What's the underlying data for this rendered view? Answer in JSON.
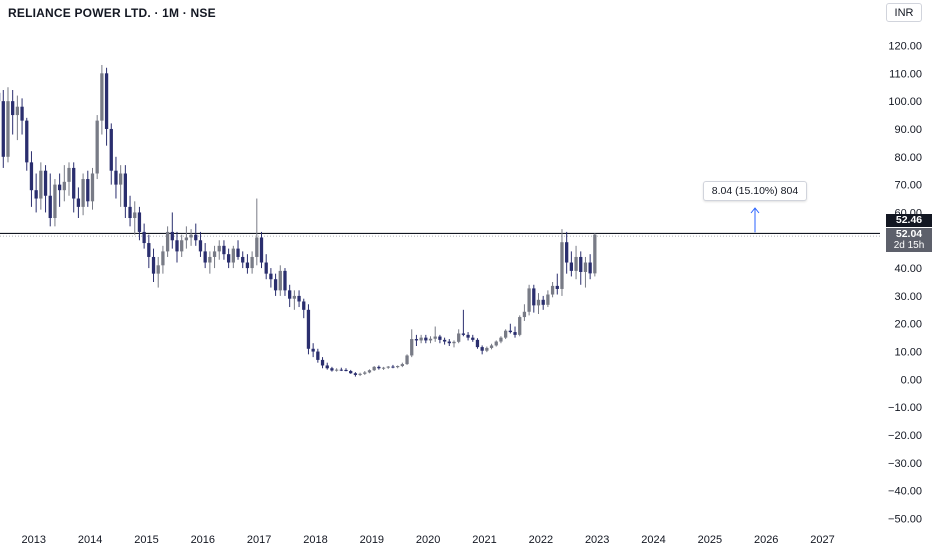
{
  "header": {
    "title": "RELIANCE POWER LTD. · 1M · NSE",
    "currency": "INR"
  },
  "measure_label": "8.04 (15.10%) 804",
  "price_tags": {
    "resistance": "52.46",
    "current": "52.04",
    "countdown": "2d 15h"
  },
  "colors": {
    "up": "#787b86",
    "down": "#2a2e6e",
    "resistance_line": "#131722",
    "axis_text": "#131722"
  },
  "chart_data": {
    "type": "candlestick",
    "title": "RELIANCE POWER LTD. · 1M · NSE",
    "y_ticks": [
      "120.00",
      "110.00",
      "100.00",
      "90.00",
      "80.00",
      "70.00",
      "60.00",
      "50.00",
      "40.00",
      "30.00",
      "20.00",
      "10.00",
      "0.00",
      "−10.00",
      "−20.00",
      "−30.00",
      "−40.00",
      "−50.00"
    ],
    "y_tick_values": [
      120,
      110,
      100,
      90,
      80,
      70,
      60,
      50,
      40,
      30,
      20,
      10,
      0,
      -10,
      -20,
      -30,
      -40,
      -50
    ],
    "ylim": [
      -52,
      124
    ],
    "x_ticks": [
      "2013",
      "2014",
      "2015",
      "2016",
      "2017",
      "2018",
      "2019",
      "2020",
      "2021",
      "2022",
      "2023",
      "2024",
      "2025",
      "2026",
      "2027"
    ],
    "x_tick_years": [
      2013,
      2014,
      2015,
      2016,
      2017,
      2018,
      2019,
      2020,
      2021,
      2022,
      2023,
      2024,
      2025,
      2026,
      2027
    ],
    "xlim": [
      2012.4,
      2028.02
    ],
    "resistance_level": 52.46,
    "current_price": 52.04,
    "change_annotation": "8.04 (15.10%) 804",
    "start": "2012-05",
    "candles": [
      [
        103,
        112,
        95,
        100
      ],
      [
        100,
        104,
        76,
        80
      ],
      [
        80,
        105,
        78,
        100
      ],
      [
        100,
        104,
        88,
        95
      ],
      [
        95,
        102,
        86,
        98
      ],
      [
        98,
        101,
        88,
        93
      ],
      [
        93,
        94,
        75,
        78
      ],
      [
        78,
        82,
        62,
        68
      ],
      [
        68,
        74,
        60,
        65
      ],
      [
        65,
        78,
        61,
        75
      ],
      [
        75,
        77,
        60,
        66
      ],
      [
        66,
        74,
        55,
        58
      ],
      [
        58,
        72,
        55,
        70
      ],
      [
        70,
        74,
        62,
        68
      ],
      [
        68,
        77,
        64,
        71
      ],
      [
        71,
        78,
        66,
        76
      ],
      [
        76,
        78,
        60,
        65
      ],
      [
        65,
        69,
        58,
        62
      ],
      [
        62,
        74,
        59,
        72
      ],
      [
        72,
        75,
        62,
        64
      ],
      [
        64,
        76,
        61,
        74
      ],
      [
        74,
        95,
        72,
        93
      ],
      [
        93,
        113,
        88,
        110
      ],
      [
        110,
        112,
        84,
        90
      ],
      [
        90,
        92,
        70,
        75
      ],
      [
        75,
        80,
        65,
        70
      ],
      [
        70,
        77,
        62,
        74
      ],
      [
        74,
        77,
        58,
        62
      ],
      [
        62,
        66,
        55,
        58
      ],
      [
        58,
        64,
        52,
        60
      ],
      [
        60,
        62,
        50,
        53
      ],
      [
        53,
        56,
        47,
        49
      ],
      [
        49,
        52,
        40,
        44
      ],
      [
        44,
        47,
        35,
        38
      ],
      [
        38,
        44,
        33,
        41
      ],
      [
        41,
        48,
        38,
        46
      ],
      [
        46,
        55,
        44,
        53
      ],
      [
        53,
        60,
        47,
        50
      ],
      [
        50,
        53,
        42,
        46
      ],
      [
        46,
        52,
        44,
        50
      ],
      [
        50,
        55,
        47,
        51
      ],
      [
        51,
        54,
        48,
        52
      ],
      [
        52,
        56,
        48,
        50
      ],
      [
        50,
        53,
        44,
        46
      ],
      [
        46,
        49,
        40,
        42
      ],
      [
        42,
        46,
        38,
        44
      ],
      [
        44,
        48,
        40,
        46
      ],
      [
        46,
        50,
        43,
        48
      ],
      [
        48,
        50,
        43,
        45
      ],
      [
        45,
        47,
        40,
        42
      ],
      [
        42,
        48,
        40,
        47
      ],
      [
        47,
        50,
        43,
        44
      ],
      [
        44,
        46,
        40,
        42
      ],
      [
        42,
        45,
        38,
        40
      ],
      [
        40,
        46,
        38,
        44
      ],
      [
        44,
        65,
        41,
        51
      ],
      [
        51,
        53,
        40,
        42
      ],
      [
        42,
        45,
        36,
        38
      ],
      [
        38,
        40,
        33,
        36
      ],
      [
        36,
        38,
        30,
        32
      ],
      [
        32,
        41,
        30,
        39
      ],
      [
        39,
        40,
        30,
        32
      ],
      [
        32,
        34,
        26,
        29
      ],
      [
        29,
        32,
        25,
        30
      ],
      [
        30,
        32,
        26,
        28
      ],
      [
        28,
        29,
        22,
        25
      ],
      [
        25,
        27,
        9,
        11
      ],
      [
        11,
        13,
        8,
        10
      ],
      [
        10,
        11,
        6,
        7
      ],
      [
        7,
        8,
        4,
        5
      ],
      [
        5,
        6,
        3.5,
        4
      ],
      [
        4,
        4.5,
        2.8,
        3.2
      ],
      [
        3.2,
        4,
        2.8,
        3.5
      ],
      [
        3.5,
        4.2,
        3,
        3.4
      ],
      [
        3.4,
        4,
        2.9,
        3
      ],
      [
        3,
        3.4,
        2,
        2.2
      ],
      [
        2.2,
        2.6,
        1,
        1.6
      ],
      [
        1.6,
        2.4,
        1.2,
        2
      ],
      [
        2,
        3,
        1.6,
        2.5
      ],
      [
        2.5,
        3.6,
        2.2,
        3.3
      ],
      [
        3.3,
        4.8,
        3,
        4.5
      ],
      [
        4.5,
        5,
        3.5,
        4
      ],
      [
        4,
        4.5,
        3.4,
        4.2
      ],
      [
        4.2,
        4.8,
        3.8,
        4.6
      ],
      [
        4.6,
        5.2,
        4,
        4.4
      ],
      [
        4.4,
        5,
        4,
        4.8
      ],
      [
        4.8,
        6,
        4.4,
        5.5
      ],
      [
        5.5,
        9,
        5.2,
        8.6
      ],
      [
        8.6,
        18,
        8,
        14.5
      ],
      [
        14.5,
        16,
        12,
        14
      ],
      [
        14,
        16,
        13,
        15
      ],
      [
        15,
        16,
        13,
        14
      ],
      [
        14,
        15.5,
        13,
        14.6
      ],
      [
        14.6,
        19,
        13.5,
        15.4
      ],
      [
        15.4,
        16,
        13,
        14.2
      ],
      [
        14.2,
        15,
        12.5,
        13.6
      ],
      [
        13.6,
        14.5,
        12,
        13
      ],
      [
        13,
        14,
        11.5,
        13.5
      ],
      [
        13.5,
        18,
        13,
        16.5
      ],
      [
        16.5,
        25,
        15.5,
        16
      ],
      [
        16,
        17,
        14,
        15
      ],
      [
        15,
        16,
        13.5,
        14.2
      ],
      [
        14.2,
        14.8,
        11,
        11.6
      ],
      [
        11.6,
        12.2,
        9,
        10.3
      ],
      [
        10.3,
        11.8,
        9.8,
        11.3
      ],
      [
        11.3,
        12.8,
        10.8,
        12.2
      ],
      [
        12.2,
        14,
        11.8,
        13.6
      ],
      [
        13.6,
        15.5,
        13,
        15
      ],
      [
        15,
        18,
        14.5,
        17.5
      ],
      [
        17.5,
        20,
        16.5,
        17
      ],
      [
        17,
        19,
        15,
        16
      ],
      [
        16,
        23,
        15.5,
        22.4
      ],
      [
        22.4,
        27,
        21,
        24.3
      ],
      [
        24.3,
        34,
        23,
        32.7
      ],
      [
        32.7,
        34,
        24,
        26.6
      ],
      [
        26.6,
        31,
        23.5,
        28.6
      ],
      [
        28.6,
        30,
        25,
        26.8
      ],
      [
        26.8,
        32,
        26,
        30.5
      ],
      [
        30.5,
        35,
        29.5,
        33.6
      ],
      [
        33.6,
        38,
        30.5,
        32.5
      ],
      [
        32.5,
        54,
        30,
        49.3
      ],
      [
        49.3,
        53,
        38,
        42
      ],
      [
        42,
        46,
        37,
        39
      ],
      [
        39,
        48,
        36,
        44
      ],
      [
        44,
        46,
        34,
        38.6
      ],
      [
        38.6,
        44,
        33,
        42
      ],
      [
        42,
        45,
        36,
        38.1
      ],
      [
        38.1,
        52.5,
        37,
        52.04
      ]
    ]
  }
}
